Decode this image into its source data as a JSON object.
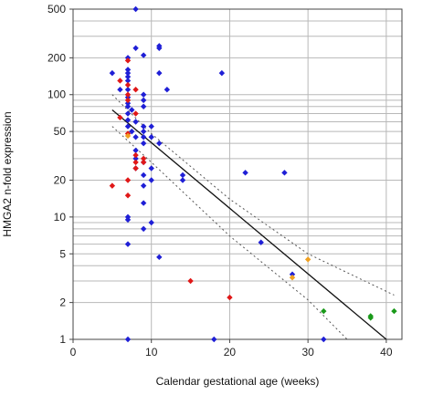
{
  "chart_data": {
    "type": "scatter",
    "title": "",
    "xlabel": "Calendar gestational age (weeks)",
    "ylabel": "HMGA2 n-fold expression",
    "xlim": [
      0,
      42
    ],
    "ylim": [
      1,
      500
    ],
    "yscale": "log",
    "xticks": [
      0,
      10,
      20,
      30,
      40
    ],
    "yticks": [
      1,
      2,
      5,
      10,
      20,
      50,
      100,
      200,
      500
    ],
    "grid": true,
    "legend": "none",
    "colors": {
      "blue": "#1f1fd6",
      "red": "#e01818",
      "orange": "#f0a020",
      "green": "#1a9a1a",
      "fit": "#111111",
      "ci": "#555555",
      "grid": "#b8b8b8"
    },
    "series": [
      {
        "color": "blue",
        "points": [
          [
            5,
            150
          ],
          [
            6,
            110
          ],
          [
            7,
            200
          ],
          [
            7,
            160
          ],
          [
            7,
            150
          ],
          [
            7,
            140
          ],
          [
            7,
            130
          ],
          [
            7,
            110
          ],
          [
            7,
            95
          ],
          [
            7,
            85
          ],
          [
            7,
            80
          ],
          [
            7,
            70
          ],
          [
            7,
            62
          ],
          [
            7,
            55
          ],
          [
            7,
            10
          ],
          [
            7,
            9.5
          ],
          [
            7,
            6
          ],
          [
            7,
            1
          ],
          [
            7.5,
            50
          ],
          [
            7.5,
            75
          ],
          [
            8,
            500
          ],
          [
            8,
            240
          ],
          [
            8,
            60
          ],
          [
            8,
            45
          ],
          [
            8,
            35
          ],
          [
            8,
            30
          ],
          [
            8,
            25
          ],
          [
            9,
            210
          ],
          [
            9,
            100
          ],
          [
            9,
            90
          ],
          [
            9,
            80
          ],
          [
            9,
            55
          ],
          [
            9,
            50
          ],
          [
            9,
            45
          ],
          [
            9,
            40
          ],
          [
            9,
            28
          ],
          [
            9,
            22
          ],
          [
            9,
            18
          ],
          [
            9,
            13
          ],
          [
            9,
            8
          ],
          [
            10,
            55
          ],
          [
            10,
            45
          ],
          [
            10,
            25
          ],
          [
            10,
            20
          ],
          [
            10,
            9
          ],
          [
            11,
            250
          ],
          [
            11,
            240
          ],
          [
            11,
            150
          ],
          [
            11,
            40
          ],
          [
            11,
            4.7
          ],
          [
            12,
            110
          ],
          [
            14,
            22
          ],
          [
            14,
            20
          ],
          [
            18,
            1
          ],
          [
            19,
            150
          ],
          [
            22,
            23
          ],
          [
            24,
            6.2
          ],
          [
            27,
            23
          ],
          [
            28,
            3.4
          ],
          [
            32,
            1
          ]
        ]
      },
      {
        "color": "red",
        "points": [
          [
            5,
            18
          ],
          [
            6,
            130
          ],
          [
            6,
            65
          ],
          [
            7,
            190
          ],
          [
            7,
            120
          ],
          [
            7,
            100
          ],
          [
            7,
            90
          ],
          [
            7,
            48
          ],
          [
            7,
            20
          ],
          [
            7,
            15
          ],
          [
            8,
            110
          ],
          [
            8,
            70
          ],
          [
            8,
            32
          ],
          [
            8,
            28
          ],
          [
            8,
            25
          ],
          [
            9,
            30
          ],
          [
            9,
            28
          ],
          [
            15,
            3
          ],
          [
            20,
            2.2
          ]
        ]
      },
      {
        "color": "orange",
        "points": [
          [
            7,
            46
          ],
          [
            28,
            3.2
          ],
          [
            30,
            4.5
          ]
        ]
      },
      {
        "color": "green",
        "points": [
          [
            32,
            1.7
          ],
          [
            38,
            1.5
          ],
          [
            38,
            1.55
          ],
          [
            41,
            1.7
          ]
        ]
      }
    ],
    "fit_line": [
      [
        5,
        75
      ],
      [
        40,
        1
      ]
    ],
    "ci_upper": [
      [
        5,
        100
      ],
      [
        10,
        48
      ],
      [
        20,
        14
      ],
      [
        30,
        5
      ],
      [
        41,
        2.3
      ]
    ],
    "ci_lower": [
      [
        5,
        55
      ],
      [
        10,
        28
      ],
      [
        20,
        7
      ],
      [
        30,
        2.1
      ],
      [
        35,
        1
      ]
    ]
  }
}
